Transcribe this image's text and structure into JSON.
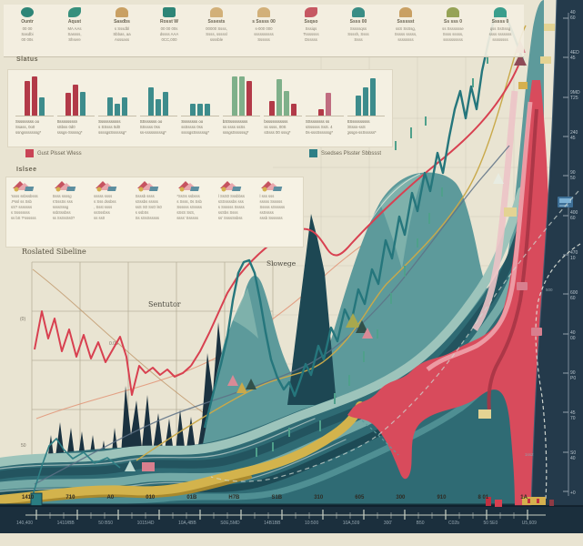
{
  "note": "Decorative data-viz infographic; nearly all text in the source image is illegible AI pseudo-text, transcribed here as best-effort glyph approximations.",
  "palette": {
    "cream": "#e9e4d2",
    "panel": "#f4f0e2",
    "navy": "#1b2f3d",
    "navy_panel": "#243a4b",
    "teal_dark": "#25767c",
    "teal_mid": "#5d9a9b",
    "teal_pale": "#9dc4bb",
    "teal_deep": "#23545f",
    "red": "#d84b5c",
    "red_line": "#d84050",
    "pink": "#efa3ab",
    "crimson": "#a73545",
    "gold": "#d3b34c",
    "gold_line": "#c9a94a",
    "slate": "#5d7186",
    "olive": "#96a356",
    "green_bar": "#7fb08a",
    "teal_bar": "#3d8c8c",
    "red_bar": "#b23a48",
    "mauve_bar": "#c06c80"
  },
  "top_icons": {
    "items": [
      {
        "icon": "swirl",
        "color": "#2e8577",
        "title": "Ountr",
        "lines": [
          "00 00",
          "Sasdbi",
          "00 00s"
        ]
      },
      {
        "icon": "leaf",
        "color": "#37907d",
        "title": "Aqust",
        "lines": [
          "MA AAs",
          "Sassss,",
          "Shsere"
        ]
      },
      {
        "icon": "shell",
        "color": "#c9a063",
        "title": "Sasdbs",
        "lines": [
          "s Sssdbl",
          "Sbbas, aa",
          "Asssass"
        ]
      },
      {
        "icon": "gem",
        "color": "#2e8577",
        "title": "Rosst W",
        "lines": [
          "00 00 00s",
          "dssss AAA",
          "0CC,000"
        ]
      },
      {
        "icon": "dune",
        "color": "#d2b079",
        "title": "Sssests",
        "lines": [
          "00000 Ssss,",
          "Ssss, sssssl",
          "ssssble"
        ]
      },
      {
        "icon": "dune",
        "color": "#d2b079",
        "title": "s Sssss 00",
        "lines": [
          "s-000 000",
          "ssssssssss",
          "Ssssss"
        ]
      },
      {
        "icon": "fish",
        "color": "#c65862",
        "title": "Ssqso",
        "lines": [
          "Sssiqs",
          "Tsssssss",
          "Dsssss"
        ]
      },
      {
        "icon": "shell",
        "color": "#3a8d85",
        "title": "Ssss 00",
        "lines": [
          "Sssssqss",
          "Ssssh, Ssss",
          "Ssss"
        ]
      },
      {
        "icon": "dune",
        "color": "#c9a063",
        "title": "Sssssst",
        "lines": [
          "ssS SsSsg,",
          "Sssss sssss,",
          "ssssssss"
        ]
      },
      {
        "icon": "mound",
        "color": "#96a356",
        "title": "Ss sss 0",
        "lines": [
          "ss Ssssssse",
          "Ssss sssss,",
          "ssssssssss"
        ]
      },
      {
        "icon": "tri",
        "color": "#3a9e8c",
        "title": "Sssss 0",
        "lines": [
          "qss SsSssg",
          "ssss sssssss",
          "ssssssss"
        ]
      }
    ]
  },
  "status_section": {
    "heading": "Slatus",
    "charts": [
      {
        "bars": [
          {
            "value": 85,
            "color": "red_bar"
          },
          {
            "value": 95,
            "color": "red_bar"
          },
          {
            "value": 45,
            "color": "teal_bar"
          }
        ],
        "caption": [
          "Sssssssss oo",
          "Ssass, 0o0",
          "ssngsssssssg*"
        ]
      },
      {
        "bars": [
          {
            "value": 55,
            "color": "red_bar"
          },
          {
            "value": 75,
            "color": "red_bar"
          },
          {
            "value": 58,
            "color": "teal_bar"
          }
        ],
        "caption": [
          "Sssssssssn",
          "sSbss 0d0",
          "sssgs-Sssssg*"
        ]
      },
      {
        "bars": [
          {
            "value": 45,
            "color": "teal_bar"
          },
          {
            "value": 28,
            "color": "teal_bar"
          },
          {
            "value": 45,
            "color": "teal_bar"
          }
        ],
        "caption": [
          "Sssssssssss",
          "s SSsss 0d0",
          "ssssgsSsssssg*"
        ]
      },
      {
        "bars": [
          {
            "value": 68,
            "color": "teal_bar"
          },
          {
            "value": 40,
            "color": "teal_bar"
          },
          {
            "value": 58,
            "color": "teal_bar"
          }
        ],
        "caption": [
          "SSssssss oo",
          "SSssss 0ss",
          "ss-sssssssssg*"
        ]
      },
      {
        "bars": [
          {
            "value": 30,
            "color": "teal_bar"
          },
          {
            "value": 30,
            "color": "teal_bar"
          },
          {
            "value": 30,
            "color": "teal_bar"
          }
        ],
        "caption": [
          "Ssssssss oo",
          "ssSssss 0ss",
          "ssssgsSsssssg*"
        ]
      },
      {
        "bars": [
          {
            "value": 95,
            "color": "green_bar"
          },
          {
            "value": 95,
            "color": "green_bar"
          },
          {
            "value": 85,
            "color": "red_bar"
          }
        ],
        "caption": [
          "bSSsssssssss",
          "ss ssss ssSs",
          "sssgsSsssssg*"
        ]
      },
      {
        "bars": [
          {
            "value": 35,
            "color": "red_bar"
          },
          {
            "value": 90,
            "color": "green_bar"
          },
          {
            "value": 60,
            "color": "green_bar"
          },
          {
            "value": 28,
            "color": "red_bar"
          }
        ],
        "caption": [
          "bsssssssssss",
          "ss ssss, 00S",
          "sSsss 00 sssg*"
        ]
      },
      {
        "bars": [
          {
            "value": 15,
            "color": "red_bar"
          },
          {
            "value": 55,
            "color": "mauve_bar"
          }
        ],
        "caption": [
          "SSsssssss ss",
          "sSsssss SsS. 4",
          "0s-sssSsssssg*"
        ]
      },
      {
        "bars": [
          {
            "value": 50,
            "color": "teal_bar"
          },
          {
            "value": 70,
            "color": "teal_bar"
          },
          {
            "value": 92,
            "color": "teal_bar"
          }
        ],
        "caption": [
          "SSsssssssss",
          "0Ssss-ssS",
          "gssgs-ssSsssss*"
        ]
      }
    ]
  },
  "legend": {
    "items": [
      {
        "color": "#c94456",
        "label": "Gust Plsset Wless"
      },
      {
        "color": "#2e7f86",
        "label": "Ssedses Plsster Sbbssst"
      }
    ]
  },
  "islands_section": {
    "heading": "Islsee",
    "items": [
      {
        "lines": [
          "'ssss ssbssbsss",
          ".Pssl ss Ssb",
          "sS? sssssss",
          "s Ssssssss",
          "ss bS 'Fssssss"
        ]
      },
      {
        "lines": [
          "Ssss ssssg",
          "s'SssSs sss",
          "ssssSssg",
          "ssbSssbss",
          "ss SsSsSs0?"
        ]
      },
      {
        "lines": [
          "sssss ssss",
          "s Sss dssbss",
          ", Ssst ssss",
          "ssSssbss",
          "ss ss0"
        ]
      },
      {
        "lines": [
          "Ssssb ssss",
          "sSssbs sssss",
          "ssS S0 SsO ls0",
          "s ssbSs",
          "Ss sSsSsssss"
        ]
      },
      {
        "lines": [
          "*SsSs ssbsss",
          "s Ssss, 0s Ssb",
          "Ssssss sSssss",
          "sSsS SsS,",
          "ssss' Ssssss"
        ]
      },
      {
        "lines": [
          "l SsS0 Sssbbss",
          "sSSssssbs sss",
          "s Ssssss Sssss",
          "ssSbs Ssss",
          "ss' SsssSsbss"
        ]
      },
      {
        "lines": [
          "l sss sss",
          "sssss Ssssss",
          "Sssss sSsssss",
          "ssSssss",
          "sssb Sssssss"
        ]
      }
    ]
  },
  "main_chart": {
    "inset_title": "Roslated Sibeline",
    "annotation_1": "Sentutor",
    "annotation_2": "Slowege",
    "tiny_labels": {
      "t1": "(0)",
      "t2": "0.05",
      "t3": "50"
    },
    "navy_labels": {
      "a": "0-00",
      "b": "1-00",
      "c": "1-00",
      "d": "500",
      "e": "1ss2"
    }
  },
  "x_axis": {
    "top_labels": [
      "1410",
      "710",
      "A0",
      "010",
      "01B",
      "H7B",
      "S1B",
      "310",
      "605",
      "300",
      "910",
      "8 01",
      "1A"
    ],
    "bar_labels": [
      "140,400",
      "1410/BB",
      "50 B50",
      "1015/4D",
      "10A,4BB",
      "S0E,5MD",
      "14B1BB",
      "10:500",
      "10A,509",
      "300'",
      "B50",
      "C02b",
      "50 5E0",
      "U5,609"
    ]
  },
  "right_axis": {
    "labels": [
      "40 60",
      "4ED 45",
      "9MD T25",
      "240 45",
      "90 50",
      "400 60",
      "470 10",
      "600 60",
      "40 00",
      "90 P0",
      "45 70",
      "S0 40",
      "+0"
    ]
  },
  "chart_data": [
    {
      "type": "area",
      "title": "Main composite mountain / stream chart (all axis text illegible pseudo-text)",
      "x_tick_labels": [
        "1410",
        "710",
        "A0",
        "010",
        "01B",
        "H7B",
        "S1B",
        "310",
        "605",
        "300",
        "910",
        "8 01",
        "1A"
      ],
      "right_axis_tick_labels": [
        "40 60",
        "4ED 45",
        "9MD T25",
        "240 45",
        "90 50",
        "400 60",
        "470 10",
        "600 60",
        "40 00",
        "90 P0",
        "45 70",
        "S0 40",
        "+0"
      ],
      "ylim": [
        0,
        100
      ],
      "grid": true,
      "note": "values are estimated relative heights 0-100 read from the painting-style render",
      "series": [
        {
          "name": "navy-silhouette-range",
          "type": "area",
          "color": "#1b3240",
          "values": [
            8,
            10,
            14,
            18,
            22,
            26,
            30,
            34,
            36,
            34,
            32,
            30,
            28
          ]
        },
        {
          "name": "teal-mountain-range",
          "type": "area",
          "color": "#5d9a9b",
          "values": [
            0,
            0,
            2,
            6,
            18,
            40,
            30,
            22,
            55,
            70,
            45,
            85,
            100
          ]
        },
        {
          "name": "teal-wave-band",
          "type": "area",
          "color": "#2f6b74",
          "values": [
            6,
            7,
            8,
            9,
            10,
            12,
            15,
            18,
            24,
            32,
            44,
            60,
            78
          ]
        },
        {
          "name": "gold-band",
          "type": "line",
          "color": "#d3b34c",
          "values": [
            3,
            4,
            4,
            5,
            6,
            8,
            12,
            16,
            22,
            30,
            45,
            65,
            85
          ]
        },
        {
          "name": "crimson-band",
          "type": "area",
          "color": "#d84b5c",
          "values": [
            0,
            0,
            0,
            0,
            0,
            0,
            0,
            0,
            2,
            6,
            20,
            60,
            95
          ]
        },
        {
          "name": "teal-index-line",
          "type": "line",
          "color": "#25767c",
          "values": [
            2,
            3,
            4,
            6,
            10,
            18,
            30,
            48,
            55,
            75,
            95,
            98,
            88
          ]
        },
        {
          "name": "red-trend-line",
          "type": "line",
          "color": "#d84050",
          "values": [
            38,
            30,
            34,
            28,
            25,
            26,
            33,
            42,
            50,
            58,
            66,
            78,
            92
          ]
        },
        {
          "name": "white-dashed-line",
          "type": "line",
          "color": "#dfe3da",
          "values": [
            0,
            0,
            0,
            0,
            0,
            0,
            0,
            0,
            0,
            55,
            45,
            30,
            12
          ]
        },
        {
          "name": "black-dashed-line",
          "type": "line",
          "color": "#1c2b33",
          "values": [
            0,
            0,
            0,
            0,
            0,
            12,
            11,
            10,
            12,
            14,
            15,
            14,
            14
          ]
        }
      ]
    },
    {
      "type": "line",
      "title": "Roslated Sibeline (left inset)",
      "annotations": [
        "Sentutor",
        "Slowege"
      ],
      "series": [
        {
          "name": "red-zigzag",
          "color": "#d84050",
          "values": [
            55,
            78,
            62,
            72,
            52,
            66,
            48,
            62,
            46,
            58,
            42,
            52,
            40,
            22,
            38,
            35,
            37,
            36,
            38,
            42,
            52,
            65,
            78
          ]
        }
      ],
      "ylim": [
        0,
        100
      ]
    },
    {
      "type": "bar",
      "title": "Status mini bar charts (9 panels)",
      "charts": [
        {
          "values": [
            85,
            95,
            45
          ],
          "colors": [
            "red",
            "red",
            "teal"
          ]
        },
        {
          "values": [
            55,
            75,
            58
          ],
          "colors": [
            "red",
            "red",
            "teal"
          ]
        },
        {
          "values": [
            45,
            28,
            45
          ],
          "colors": [
            "teal",
            "teal",
            "teal"
          ]
        },
        {
          "values": [
            68,
            40,
            58
          ],
          "colors": [
            "teal",
            "teal",
            "teal"
          ]
        },
        {
          "values": [
            30,
            30,
            30
          ],
          "colors": [
            "teal",
            "teal",
            "teal"
          ]
        },
        {
          "values": [
            95,
            95,
            85
          ],
          "colors": [
            "green",
            "green",
            "red"
          ]
        },
        {
          "values": [
            35,
            90,
            60,
            28
          ],
          "colors": [
            "red",
            "green",
            "green",
            "red"
          ]
        },
        {
          "values": [
            15,
            55
          ],
          "colors": [
            "red",
            "mauve"
          ]
        },
        {
          "values": [
            50,
            70,
            92
          ],
          "colors": [
            "teal",
            "teal",
            "teal"
          ]
        }
      ]
    }
  ]
}
